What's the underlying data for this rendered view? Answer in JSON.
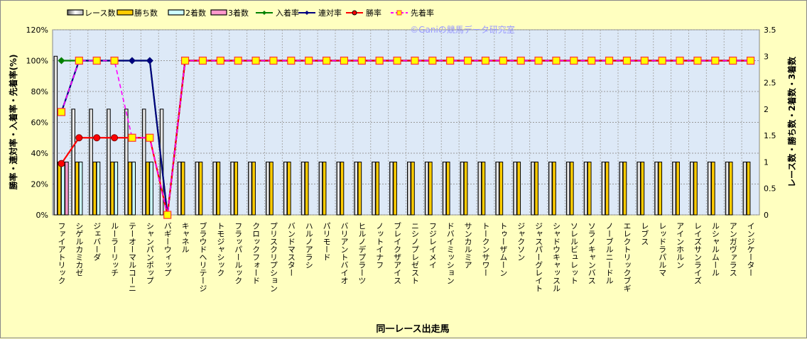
{
  "chart_data": {
    "type": "bar+line",
    "watermark": "©Ganiの競馬データ研究室",
    "xlabel": "同一レース出走馬",
    "ylabel_left": "勝率・連対率・入着率・先着率(%)",
    "ylabel_right": "レース数・勝ち数・2着数・3着数",
    "ylim_left": [
      0,
      120
    ],
    "ylim_right": [
      0,
      3.5
    ],
    "yticks_left": [
      "0%",
      "20%",
      "40%",
      "60%",
      "80%",
      "100%",
      "120%"
    ],
    "yticks_right": [
      "0",
      "0.5",
      "1",
      "1.5",
      "2",
      "2.5",
      "3",
      "3.5"
    ],
    "grid": true,
    "legend_position": "top",
    "categories": [
      "ファイアトリック",
      "シゲルカミカゼ",
      "ジェバーダ",
      "ルーラーリッチ",
      "テーオーマルコーニ",
      "シャンパンポップ",
      "バギーウィップ",
      "キャネル",
      "ブラウドヘリテージ",
      "トモジャシック",
      "フラッパールック",
      "クロックフォード",
      "プリスクリプション",
      "バンドマスター",
      "ハルノアラシ",
      "パリモード",
      "バリアントバイオ",
      "ヒルノデプラーツ",
      "ノットイナフ",
      "ブレイクザアイス",
      "ニシノプレゼスト",
      "フジレイメイ",
      "ドバイミッション",
      "サンカルミア",
      "トークンサワー",
      "トゥーザムーン",
      "ジャクソン",
      "ジャスパーグレイト",
      "シャドウキャッスル",
      "ソレルビュレット",
      "ソラノキャンバス",
      "ノーブルニードル",
      "エレクトリックブギ",
      "レブス",
      "レッドラパルマ",
      "アインホルン",
      "レイズサンライズ",
      "ルシャルムール",
      "アンガヴァラス",
      "インジケーター"
    ],
    "bar_series": [
      {
        "name": "レース数",
        "axis": "right",
        "color": "#ffffff",
        "values": [
          3,
          2,
          2,
          2,
          2,
          2,
          2,
          1,
          1,
          1,
          1,
          1,
          1,
          1,
          1,
          1,
          1,
          1,
          1,
          1,
          1,
          1,
          1,
          1,
          1,
          1,
          1,
          1,
          1,
          1,
          1,
          1,
          1,
          1,
          1,
          1,
          1,
          1,
          1,
          1
        ]
      },
      {
        "name": "勝ち数",
        "axis": "right",
        "color": "#ffcc00",
        "values": [
          1,
          1,
          1,
          1,
          1,
          1,
          0,
          1,
          1,
          1,
          1,
          1,
          1,
          1,
          1,
          1,
          1,
          1,
          1,
          1,
          1,
          1,
          1,
          1,
          1,
          1,
          1,
          1,
          1,
          1,
          1,
          1,
          1,
          1,
          1,
          1,
          1,
          1,
          1,
          1
        ]
      },
      {
        "name": "2着数",
        "axis": "right",
        "color": "#ccffff",
        "values": [
          1,
          1,
          1,
          1,
          1,
          1,
          0,
          0,
          0,
          0,
          0,
          0,
          0,
          0,
          0,
          0,
          0,
          0,
          0,
          0,
          0,
          0,
          0,
          0,
          0,
          0,
          0,
          0,
          0,
          0,
          0,
          0,
          0,
          0,
          0,
          0,
          0,
          0,
          0,
          0
        ]
      },
      {
        "name": "3着数",
        "axis": "right",
        "color": "#ff99cc",
        "values": [
          1,
          0,
          0,
          0,
          0,
          0,
          0,
          0,
          0,
          0,
          0,
          0,
          0,
          0,
          0,
          0,
          0,
          0,
          0,
          0,
          0,
          0,
          0,
          0,
          0,
          0,
          0,
          0,
          0,
          0,
          0,
          0,
          0,
          0,
          0,
          0,
          0,
          0,
          0,
          0
        ]
      }
    ],
    "line_series": [
      {
        "name": "入着率",
        "axis": "left",
        "color": "#008000",
        "marker": "diamond",
        "values": [
          100,
          100,
          100,
          100,
          100,
          100,
          0,
          100,
          100,
          100,
          100,
          100,
          100,
          100,
          100,
          100,
          100,
          100,
          100,
          100,
          100,
          100,
          100,
          100,
          100,
          100,
          100,
          100,
          100,
          100,
          100,
          100,
          100,
          100,
          100,
          100,
          100,
          100,
          100,
          100
        ]
      },
      {
        "name": "連対率",
        "axis": "left",
        "color": "#000080",
        "marker": "diamond",
        "values": [
          66.7,
          100,
          100,
          100,
          100,
          100,
          0,
          100,
          100,
          100,
          100,
          100,
          100,
          100,
          100,
          100,
          100,
          100,
          100,
          100,
          100,
          100,
          100,
          100,
          100,
          100,
          100,
          100,
          100,
          100,
          100,
          100,
          100,
          100,
          100,
          100,
          100,
          100,
          100,
          100
        ]
      },
      {
        "name": "勝率",
        "axis": "left",
        "color": "#ff0000",
        "marker": "circle",
        "values": [
          33.3,
          50,
          50,
          50,
          50,
          50,
          0,
          100,
          100,
          100,
          100,
          100,
          100,
          100,
          100,
          100,
          100,
          100,
          100,
          100,
          100,
          100,
          100,
          100,
          100,
          100,
          100,
          100,
          100,
          100,
          100,
          100,
          100,
          100,
          100,
          100,
          100,
          100,
          100,
          100
        ]
      },
      {
        "name": "先着率",
        "axis": "left",
        "color": "#ff00ff",
        "marker": "square",
        "dashed": true,
        "values": [
          66.7,
          100,
          100,
          100,
          50,
          50,
          0,
          100,
          100,
          100,
          100,
          100,
          100,
          100,
          100,
          100,
          100,
          100,
          100,
          100,
          100,
          100,
          100,
          100,
          100,
          100,
          100,
          100,
          100,
          100,
          100,
          100,
          100,
          100,
          100,
          100,
          100,
          100,
          100,
          100
        ]
      }
    ]
  }
}
